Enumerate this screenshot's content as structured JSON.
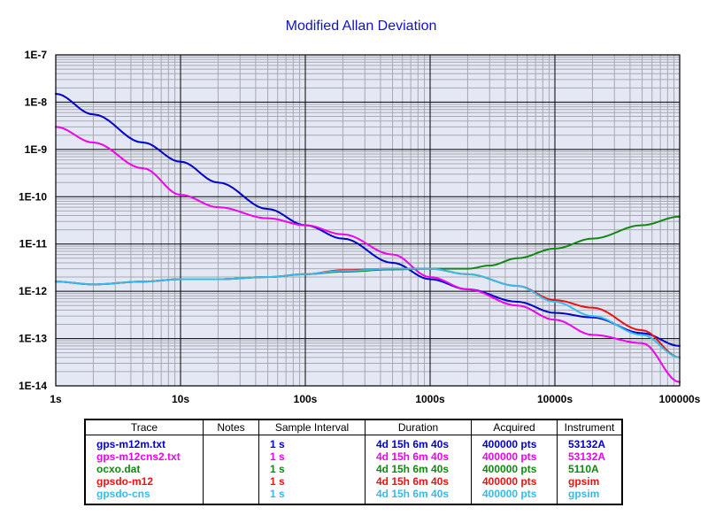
{
  "chart_data": {
    "type": "line",
    "title": "Modified Allan Deviation",
    "xlabel": "",
    "ylabel": "",
    "x_scale": "log",
    "y_scale": "log",
    "xlim": [
      1,
      100000
    ],
    "ylim": [
      1e-14,
      1e-07
    ],
    "grid": true,
    "x_ticks": [
      "1s",
      "10s",
      "100s",
      "1000s",
      "10000s",
      "100000s"
    ],
    "y_ticks": [
      "1E-7",
      "1E-8",
      "1E-9",
      "1E-10",
      "1E-11",
      "1E-12",
      "1E-13",
      "1E-14"
    ],
    "series": [
      {
        "name": "gps-m12m.txt",
        "color": "#0000cc",
        "points": [
          [
            1,
            1.5e-08
          ],
          [
            2,
            5.5e-09
          ],
          [
            5,
            1.4e-09
          ],
          [
            10,
            5.5e-10
          ],
          [
            20,
            2e-10
          ],
          [
            50,
            5.5e-11
          ],
          [
            100,
            2.5e-11
          ],
          [
            200,
            1.3e-11
          ],
          [
            500,
            4e-12
          ],
          [
            1000,
            1.8e-12
          ],
          [
            2000,
            1.1e-12
          ],
          [
            5000,
            6e-13
          ],
          [
            10000,
            3.5e-13
          ],
          [
            20000,
            2.8e-13
          ],
          [
            50000,
            1.3e-13
          ],
          [
            100000,
            7e-14
          ]
        ]
      },
      {
        "name": "gps-m12cns2.txt",
        "color": "#ee00ee",
        "points": [
          [
            1,
            3e-09
          ],
          [
            2,
            1.4e-09
          ],
          [
            5,
            4e-10
          ],
          [
            10,
            1.1e-10
          ],
          [
            20,
            6e-11
          ],
          [
            50,
            3.5e-11
          ],
          [
            100,
            2.5e-11
          ],
          [
            200,
            1.6e-11
          ],
          [
            500,
            6e-12
          ],
          [
            1000,
            2e-12
          ],
          [
            2000,
            1.1e-12
          ],
          [
            5000,
            5e-13
          ],
          [
            10000,
            2.5e-13
          ],
          [
            20000,
            1.2e-13
          ],
          [
            50000,
            8e-14
          ],
          [
            100000,
            1.2e-14
          ]
        ]
      },
      {
        "name": "ocxo.dat",
        "color": "#118811",
        "points": [
          [
            1,
            1.6e-12
          ],
          [
            2,
            1.4e-12
          ],
          [
            5,
            1.6e-12
          ],
          [
            10,
            1.8e-12
          ],
          [
            20,
            1.8e-12
          ],
          [
            50,
            2e-12
          ],
          [
            100,
            2.3e-12
          ],
          [
            200,
            2.6e-12
          ],
          [
            500,
            2.9e-12
          ],
          [
            1000,
            3e-12
          ],
          [
            2000,
            3e-12
          ],
          [
            3000,
            3.5e-12
          ],
          [
            5000,
            5e-12
          ],
          [
            10000,
            8e-12
          ],
          [
            20000,
            1.3e-11
          ],
          [
            50000,
            2.5e-11
          ],
          [
            100000,
            3.8e-11
          ]
        ]
      },
      {
        "name": "gpsdo-m12",
        "color": "#ee1111",
        "points": [
          [
            1,
            1.6e-12
          ],
          [
            2,
            1.4e-12
          ],
          [
            5,
            1.6e-12
          ],
          [
            10,
            1.8e-12
          ],
          [
            20,
            1.8e-12
          ],
          [
            50,
            2e-12
          ],
          [
            100,
            2.3e-12
          ],
          [
            200,
            2.8e-12
          ],
          [
            500,
            3e-12
          ],
          [
            1000,
            3e-12
          ],
          [
            2000,
            2.3e-12
          ],
          [
            5000,
            1.3e-12
          ],
          [
            10000,
            6.5e-13
          ],
          [
            20000,
            4.5e-13
          ],
          [
            50000,
            1.5e-13
          ],
          [
            100000,
            4e-14
          ]
        ]
      },
      {
        "name": "gpsdo-cns",
        "color": "#33bbee",
        "points": [
          [
            1,
            1.6e-12
          ],
          [
            2,
            1.4e-12
          ],
          [
            5,
            1.6e-12
          ],
          [
            10,
            1.8e-12
          ],
          [
            20,
            1.8e-12
          ],
          [
            50,
            2e-12
          ],
          [
            100,
            2.3e-12
          ],
          [
            200,
            2.7e-12
          ],
          [
            500,
            3e-12
          ],
          [
            1000,
            3e-12
          ],
          [
            2000,
            2.3e-12
          ],
          [
            5000,
            1.3e-12
          ],
          [
            10000,
            6e-13
          ],
          [
            20000,
            3e-13
          ],
          [
            50000,
            1.2e-13
          ],
          [
            100000,
            4e-14
          ]
        ]
      }
    ]
  },
  "legend": {
    "headers": [
      "Trace",
      "Notes",
      "Sample Interval",
      "Duration",
      "Acquired",
      "Instrument"
    ],
    "rows": [
      {
        "trace": "gps-m12m.txt",
        "notes": "",
        "interval": "1 s",
        "duration": "4d 15h 6m 40s",
        "acquired": "400000 pts",
        "instrument": "53132A",
        "color": "#0000cc"
      },
      {
        "trace": "gps-m12cns2.txt",
        "notes": "",
        "interval": "1 s",
        "duration": "4d 15h 6m 40s",
        "acquired": "400000 pts",
        "instrument": "53132A",
        "color": "#ee00ee"
      },
      {
        "trace": "ocxo.dat",
        "notes": "",
        "interval": "1 s",
        "duration": "4d 15h 6m 40s",
        "acquired": "400000 pts",
        "instrument": "5110A",
        "color": "#118811"
      },
      {
        "trace": "gpsdo-m12",
        "notes": "",
        "interval": "1 s",
        "duration": "4d 15h 6m 40s",
        "acquired": "400000 pts",
        "instrument": "gpsim",
        "color": "#ee1111"
      },
      {
        "trace": "gpsdo-cns",
        "notes": "",
        "interval": "1 s",
        "duration": "4d 15h 6m 40s",
        "acquired": "400000 pts",
        "instrument": "gpsim",
        "color": "#33bbee"
      }
    ]
  },
  "colors": {
    "title": "#1111cc",
    "plot_background": "#e4e8f4",
    "minor_grid": "#a8a8b0",
    "major_grid": "#000000"
  }
}
